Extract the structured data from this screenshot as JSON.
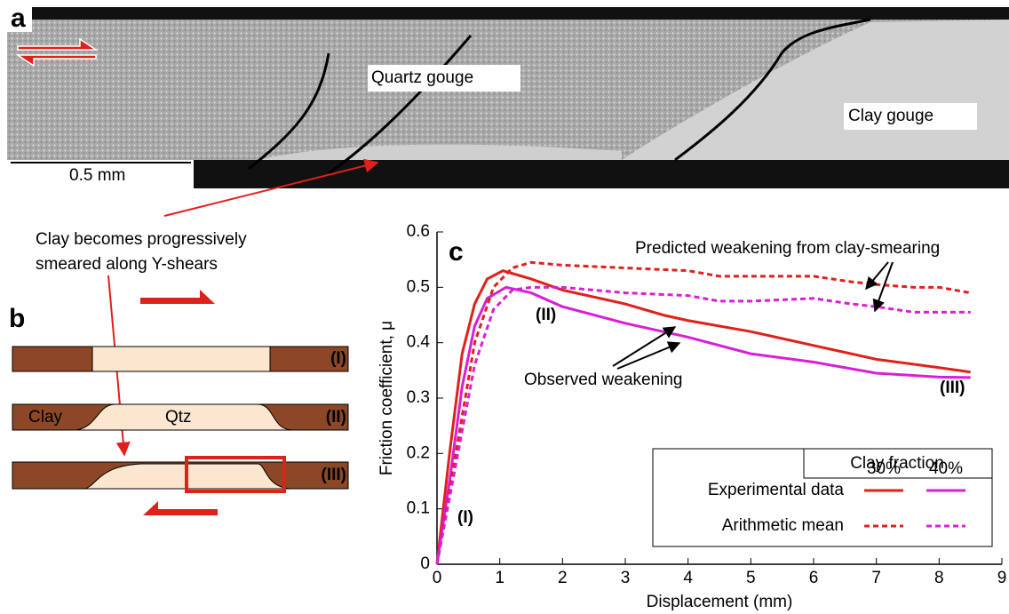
{
  "panel_a": {
    "label": "a",
    "quartz": "Quartz gouge",
    "clay": "Clay gouge",
    "scale": "0.5 mm"
  },
  "panel_b": {
    "label": "b",
    "caption": [
      "Clay becomes progressively",
      "smeared along Y-shears"
    ],
    "clay": "Clay",
    "qtz": "Qtz",
    "stages": [
      "(I)",
      "(II)",
      "(III)"
    ]
  },
  "chart_data": {
    "type": "line",
    "panel_label": "c",
    "x_label": "Displacement (mm)",
    "y_label": "Friction coefficient, μ",
    "xlim": [
      0,
      9
    ],
    "ylim": [
      0,
      0.6
    ],
    "xticks": [
      0,
      1,
      2,
      3,
      4,
      5,
      6,
      7,
      8,
      9
    ],
    "yticks": [
      0,
      0.1,
      0.2,
      0.3,
      0.4,
      0.5,
      0.6
    ],
    "legend": {
      "title": "Clay fraction",
      "columns": [
        "30%",
        "40%"
      ],
      "rows": [
        "Experimental data",
        "Arithmetic mean"
      ]
    },
    "annotations": [
      "Predicted weakening from clay-smearing",
      "Observed weakening",
      "(I)",
      "(II)",
      "(III)"
    ],
    "series": [
      {
        "color": "#e0201b",
        "dashed": false,
        "x": [
          0,
          0.2,
          0.4,
          0.6,
          0.8,
          1.05,
          1.2,
          1.5,
          2,
          3,
          3.6,
          4,
          5,
          6,
          7,
          8,
          8.5
        ],
        "values": [
          0,
          0.2,
          0.38,
          0.47,
          0.515,
          0.53,
          0.525,
          0.515,
          0.495,
          0.47,
          0.45,
          0.44,
          0.42,
          0.395,
          0.37,
          0.355,
          0.347
        ]
      },
      {
        "color": "#d81fd8",
        "dashed": false,
        "x": [
          0,
          0.2,
          0.4,
          0.6,
          0.8,
          1.1,
          1.5,
          2,
          3,
          4,
          5,
          6,
          7,
          8,
          8.5
        ],
        "values": [
          0,
          0.15,
          0.32,
          0.43,
          0.48,
          0.5,
          0.49,
          0.465,
          0.435,
          0.41,
          0.38,
          0.365,
          0.345,
          0.338,
          0.337
        ]
      },
      {
        "color": "#e0201b",
        "dashed": true,
        "x": [
          0,
          0.3,
          0.6,
          0.9,
          1.2,
          1.5,
          2,
          3,
          4,
          4.5,
          5,
          6,
          6.6,
          7,
          7.6,
          8,
          8.5
        ],
        "values": [
          0,
          0.2,
          0.4,
          0.5,
          0.535,
          0.545,
          0.54,
          0.535,
          0.53,
          0.52,
          0.52,
          0.52,
          0.51,
          0.505,
          0.5,
          0.5,
          0.49
        ]
      },
      {
        "color": "#d81fd8",
        "dashed": true,
        "x": [
          0,
          0.3,
          0.6,
          0.9,
          1.2,
          1.5,
          2,
          3,
          4,
          4.5,
          5,
          6,
          6.6,
          7,
          7.6,
          8,
          8.5
        ],
        "values": [
          0,
          0.18,
          0.36,
          0.46,
          0.495,
          0.5,
          0.5,
          0.49,
          0.485,
          0.475,
          0.475,
          0.48,
          0.47,
          0.465,
          0.455,
          0.455,
          0.455
        ]
      }
    ]
  }
}
